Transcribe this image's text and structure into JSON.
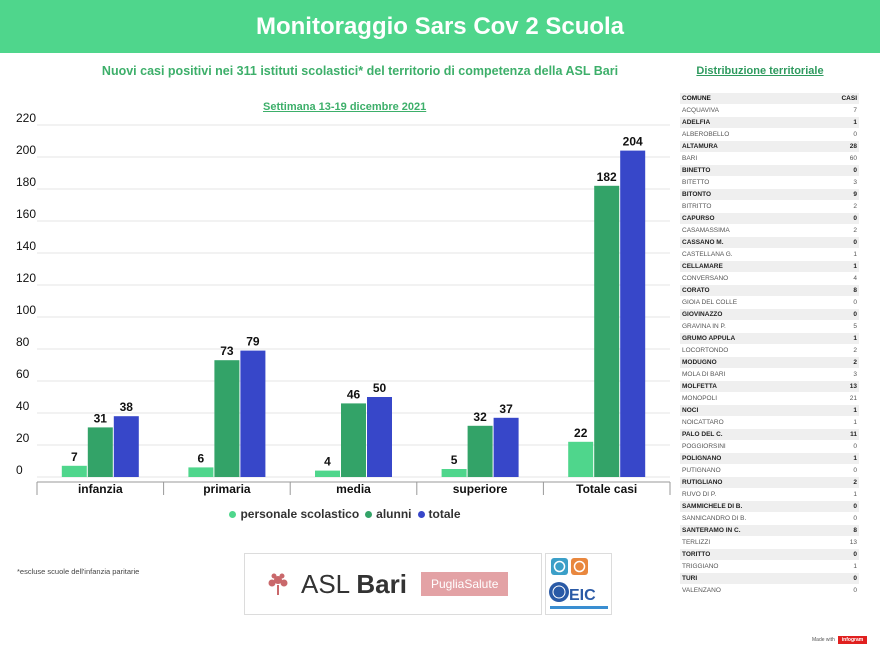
{
  "header": {
    "title": "Monitoraggio Sars Cov 2 Scuola"
  },
  "subtitle": "Nuovi casi positivi nei 311 istituti scolastici* del territorio di competenza della ASL Bari",
  "distribution_link": "Distribuzione territoriale",
  "week_label": "Settimana 13-19 dicembre 2021",
  "chart_data": {
    "type": "bar",
    "title": "Settimana 13-19 dicembre 2021",
    "categories": [
      "infanzia",
      "primaria",
      "media",
      "superiore",
      "Totale casi"
    ],
    "series": [
      {
        "name": "personale scolastico",
        "color": "#4fd68c",
        "values": [
          7,
          6,
          4,
          5,
          22
        ]
      },
      {
        "name": "alunni",
        "color": "#33a368",
        "values": [
          31,
          73,
          46,
          32,
          182
        ]
      },
      {
        "name": "totale",
        "color": "#3747c9",
        "values": [
          38,
          79,
          50,
          37,
          204
        ]
      }
    ],
    "yticks": [
      0,
      20,
      40,
      60,
      80,
      100,
      120,
      140,
      160,
      180,
      200,
      220
    ],
    "ylim": [
      0,
      220
    ],
    "xlabel": "",
    "ylabel": "",
    "legend_position": "bottom"
  },
  "legend": {
    "items": [
      {
        "label": "personale scolastico",
        "color": "#4fd68c"
      },
      {
        "label": "alunni",
        "color": "#33a368"
      },
      {
        "label": "totale",
        "color": "#3747c9"
      }
    ]
  },
  "footnote": "*escluse scuole dell'infanzia paritarie",
  "logos": {
    "asl_light": "ASL ",
    "asl_bold": "Bari",
    "puglia": "PugliaSalute",
    "eic": "EIC"
  },
  "table": {
    "headers": {
      "comune": "COMUNE",
      "casi": "CASI"
    },
    "rows": [
      {
        "comune": "ACQUAVIVA",
        "casi": "7",
        "shade": false
      },
      {
        "comune": "ADELFIA",
        "casi": "1",
        "shade": true
      },
      {
        "comune": "ALBEROBELLO",
        "casi": "0",
        "shade": false
      },
      {
        "comune": "ALTAMURA",
        "casi": "28",
        "shade": true
      },
      {
        "comune": "BARI",
        "casi": "60",
        "shade": false
      },
      {
        "comune": "BINETTO",
        "casi": "0",
        "shade": true
      },
      {
        "comune": "BITETTO",
        "casi": "3",
        "shade": false
      },
      {
        "comune": "BITONTO",
        "casi": "9",
        "shade": true
      },
      {
        "comune": "BITRITTO",
        "casi": "2",
        "shade": false
      },
      {
        "comune": "CAPURSO",
        "casi": "0",
        "shade": true
      },
      {
        "comune": "CASAMASSIMA",
        "casi": "2",
        "shade": false
      },
      {
        "comune": "CASSANO M.",
        "casi": "0",
        "shade": true
      },
      {
        "comune": "CASTELLANA G.",
        "casi": "1",
        "shade": false
      },
      {
        "comune": "CELLAMARE",
        "casi": "1",
        "shade": true
      },
      {
        "comune": "CONVERSANO",
        "casi": "4",
        "shade": false
      },
      {
        "comune": "CORATO",
        "casi": "8",
        "shade": true
      },
      {
        "comune": "GIOIA DEL COLLE",
        "casi": "0",
        "shade": false
      },
      {
        "comune": "GIOVINAZZO",
        "casi": "0",
        "shade": true
      },
      {
        "comune": "GRAVINA IN P.",
        "casi": "5",
        "shade": false
      },
      {
        "comune": "GRUMO APPULA",
        "casi": "1",
        "shade": true
      },
      {
        "comune": "LOCORTONDO",
        "casi": "2",
        "shade": false
      },
      {
        "comune": "MODUGNO",
        "casi": "2",
        "shade": true
      },
      {
        "comune": "MOLA DI BARI",
        "casi": "3",
        "shade": false
      },
      {
        "comune": "MOLFETTA",
        "casi": "13",
        "shade": true
      },
      {
        "comune": "MONOPOLI",
        "casi": "21",
        "shade": false
      },
      {
        "comune": "NOCI",
        "casi": "1",
        "shade": true
      },
      {
        "comune": "NOICATTARO",
        "casi": "1",
        "shade": false
      },
      {
        "comune": "PALO DEL C.",
        "casi": "11",
        "shade": true
      },
      {
        "comune": "POGGIORSINI",
        "casi": "0",
        "shade": false
      },
      {
        "comune": "POLIGNANO",
        "casi": "1",
        "shade": true
      },
      {
        "comune": "PUTIGNANO",
        "casi": "0",
        "shade": false
      },
      {
        "comune": "RUTIGLIANO",
        "casi": "2",
        "shade": true
      },
      {
        "comune": "RUVO DI P.",
        "casi": "1",
        "shade": false
      },
      {
        "comune": "SAMMICHELE DI B.",
        "casi": "0",
        "shade": true
      },
      {
        "comune": "SANNICANDRO DI B.",
        "casi": "0",
        "shade": false
      },
      {
        "comune": "SANTERAMO IN C.",
        "casi": "8",
        "shade": true
      },
      {
        "comune": "TERLIZZI",
        "casi": "13",
        "shade": false
      },
      {
        "comune": "TORITTO",
        "casi": "0",
        "shade": true
      },
      {
        "comune": "TRIGGIANO",
        "casi": "1",
        "shade": false
      },
      {
        "comune": "TURI",
        "casi": "0",
        "shade": true
      },
      {
        "comune": "VALENZANO",
        "casi": "0",
        "shade": false
      }
    ]
  },
  "made_with": {
    "label": "Made with",
    "brand": "infogram"
  }
}
